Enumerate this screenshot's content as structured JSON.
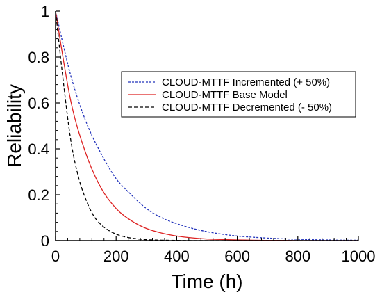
{
  "chart_data": {
    "type": "line",
    "title": "",
    "xlabel": "Time (h)",
    "ylabel": "Reliability",
    "xlim": [
      0,
      1000
    ],
    "ylim": [
      0,
      1
    ],
    "xticks": [
      0,
      200,
      400,
      600,
      800,
      1000
    ],
    "yticks": [
      0,
      0.2,
      0.4,
      0.6,
      0.8,
      1
    ],
    "ytick_labels": [
      "0",
      "0.2",
      "0.4",
      "0.6",
      "0.8",
      "1"
    ],
    "grid": false,
    "legend_position": "top-right",
    "series": [
      {
        "name": "CLOUD-MTTF Incremented (+ 50%)",
        "color": "#2233bb",
        "dash": "dashed",
        "x": [
          0,
          50,
          100,
          150,
          200,
          250,
          300,
          350,
          400,
          450,
          500,
          550,
          600,
          650,
          700,
          750,
          800,
          850,
          900,
          950,
          1000
        ],
        "y": [
          1,
          0.72,
          0.52,
          0.38,
          0.27,
          0.2,
          0.14,
          0.1,
          0.074,
          0.054,
          0.039,
          0.028,
          0.02,
          0.015,
          0.011,
          0.008,
          0.006,
          0.004,
          0.003,
          0.002,
          0.002
        ]
      },
      {
        "name": "CLOUD-MTTF Base Model",
        "color": "#dd2222",
        "dash": "solid",
        "x": [
          0,
          50,
          100,
          150,
          200,
          250,
          300,
          350,
          400,
          450,
          500,
          550,
          600,
          650,
          700,
          750,
          800,
          850,
          900,
          950,
          1000
        ],
        "y": [
          1,
          0.61,
          0.38,
          0.23,
          0.14,
          0.087,
          0.053,
          0.033,
          0.02,
          0.012,
          0.007,
          0.005,
          0.003,
          0.002,
          0.001,
          0.001,
          0,
          0,
          0,
          0,
          0
        ]
      },
      {
        "name": "CLOUD-MTTF Decremented (- 50%)",
        "color": "#000000",
        "dash": "dashed",
        "x": [
          0,
          25,
          50,
          75,
          100,
          125,
          150,
          175,
          200,
          225,
          250,
          275,
          300,
          350,
          400,
          450,
          500,
          600,
          700,
          800,
          900,
          1000
        ],
        "y": [
          1,
          0.7,
          0.44,
          0.28,
          0.18,
          0.11,
          0.07,
          0.045,
          0.028,
          0.018,
          0.011,
          0.007,
          0.004,
          0.002,
          0.001,
          0,
          0,
          0,
          0,
          0,
          0,
          0
        ]
      }
    ]
  }
}
